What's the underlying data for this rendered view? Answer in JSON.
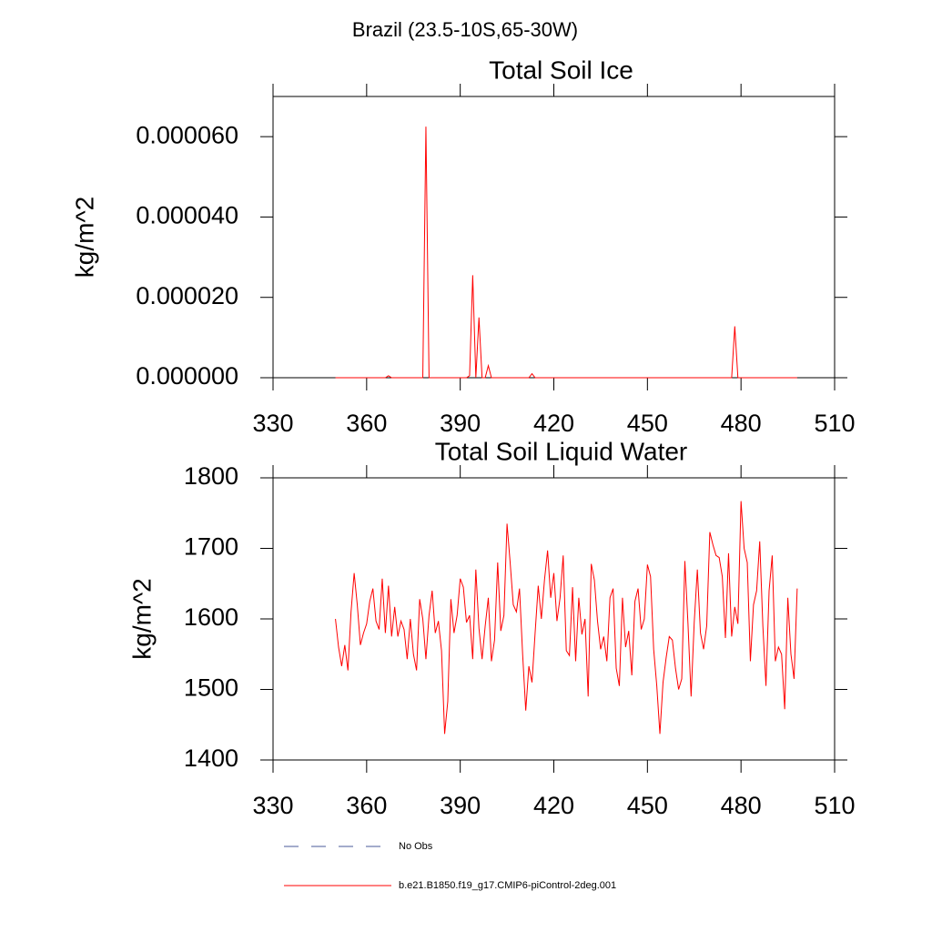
{
  "title": "Brazil (23.5-10S,65-30W)",
  "legend": [
    {
      "name": "No Obs",
      "color": "#4a5a9a",
      "dash": true
    },
    {
      "name": "b.e21.B1850.f19_g17.CMIP6-piControl-2deg.001",
      "color": "#ff0000",
      "dash": false
    }
  ],
  "chart_data": [
    {
      "type": "line",
      "title": "Total Soil Ice",
      "y_label": "kg/m^2",
      "xlim": [
        330,
        510
      ],
      "xticks": [
        330,
        360,
        390,
        420,
        450,
        480,
        510
      ],
      "ylim": [
        0,
        7e-05
      ],
      "yticks": [
        {
          "value": 0,
          "label": "0.000000"
        },
        {
          "value": 2e-05,
          "label": "0.000020"
        },
        {
          "value": 4e-05,
          "label": "0.000040"
        },
        {
          "value": 6e-05,
          "label": "0.000060"
        }
      ],
      "x": [
        350,
        351,
        352,
        353,
        354,
        355,
        356,
        357,
        358,
        359,
        360,
        361,
        362,
        363,
        364,
        365,
        366,
        367,
        368,
        369,
        370,
        371,
        372,
        373,
        374,
        375,
        376,
        377,
        378,
        379,
        380,
        381,
        382,
        383,
        384,
        385,
        386,
        387,
        388,
        389,
        390,
        391,
        392,
        393,
        394,
        395,
        396,
        397,
        398,
        399,
        400,
        401,
        402,
        403,
        404,
        405,
        406,
        407,
        408,
        409,
        410,
        411,
        412,
        413,
        414,
        415,
        416,
        417,
        418,
        419,
        420,
        421,
        422,
        423,
        424,
        425,
        426,
        427,
        428,
        429,
        430,
        431,
        432,
        433,
        434,
        435,
        436,
        437,
        438,
        439,
        440,
        441,
        442,
        443,
        444,
        445,
        446,
        447,
        448,
        449,
        450,
        451,
        452,
        453,
        454,
        455,
        456,
        457,
        458,
        459,
        460,
        461,
        462,
        463,
        464,
        465,
        466,
        467,
        468,
        469,
        470,
        471,
        472,
        473,
        474,
        475,
        476,
        477,
        478,
        479,
        480,
        481,
        482,
        483,
        484,
        485,
        486,
        487,
        488,
        489,
        490,
        491,
        492,
        493,
        494,
        495,
        496,
        497,
        498
      ],
      "series": [
        {
          "name": "b.e21.B1850.f19_g17.CMIP6-piControl-2deg.001",
          "color": "#ff0000",
          "values": [
            0,
            0,
            0,
            0,
            0,
            0,
            0,
            0,
            0,
            0,
            0,
            0,
            0,
            0,
            0,
            0,
            0,
            5e-07,
            0,
            0,
            0,
            0,
            0,
            0,
            0,
            0,
            0,
            0,
            0,
            6.25e-05,
            0,
            0,
            0,
            0,
            0,
            0,
            0,
            0,
            0,
            0,
            0,
            0,
            0,
            5e-07,
            2.55e-05,
            0,
            1.5e-05,
            0,
            0,
            3e-06,
            0,
            0,
            0,
            0,
            0,
            0,
            0,
            0,
            0,
            0,
            0,
            0,
            0,
            1e-06,
            0,
            0,
            0,
            0,
            0,
            0,
            0,
            0,
            0,
            0,
            0,
            0,
            0,
            0,
            0,
            0,
            0,
            0,
            0,
            0,
            0,
            0,
            0,
            0,
            0,
            0,
            0,
            0,
            0,
            0,
            0,
            0,
            0,
            0,
            0,
            0,
            0,
            0,
            0,
            0,
            0,
            0,
            0,
            0,
            0,
            0,
            0,
            0,
            0,
            0,
            0,
            0,
            0,
            0,
            0,
            0,
            0,
            0,
            0,
            0,
            0,
            0,
            0,
            0,
            1.28e-05,
            0,
            0,
            0,
            0,
            0,
            0,
            0,
            0,
            0,
            0,
            0,
            0,
            0,
            0,
            0,
            0,
            0,
            0,
            0,
            0
          ]
        }
      ]
    },
    {
      "type": "line",
      "title": "Total Soil Liquid Water",
      "y_label": "kg/m^2",
      "xlim": [
        330,
        510
      ],
      "xticks": [
        330,
        360,
        390,
        420,
        450,
        480,
        510
      ],
      "ylim": [
        1400,
        1800
      ],
      "yticks": [
        1400,
        1500,
        1600,
        1700,
        1800
      ],
      "x": [
        350,
        351,
        352,
        353,
        354,
        355,
        356,
        357,
        358,
        359,
        360,
        361,
        362,
        363,
        364,
        365,
        366,
        367,
        368,
        369,
        370,
        371,
        372,
        373,
        374,
        375,
        376,
        377,
        378,
        379,
        380,
        381,
        382,
        383,
        384,
        385,
        386,
        387,
        388,
        389,
        390,
        391,
        392,
        393,
        394,
        395,
        396,
        397,
        398,
        399,
        400,
        401,
        402,
        403,
        404,
        405,
        406,
        407,
        408,
        409,
        410,
        411,
        412,
        413,
        414,
        415,
        416,
        417,
        418,
        419,
        420,
        421,
        422,
        423,
        424,
        425,
        426,
        427,
        428,
        429,
        430,
        431,
        432,
        433,
        434,
        435,
        436,
        437,
        438,
        439,
        440,
        441,
        442,
        443,
        444,
        445,
        446,
        447,
        448,
        449,
        450,
        451,
        452,
        453,
        454,
        455,
        456,
        457,
        458,
        459,
        460,
        461,
        462,
        463,
        464,
        465,
        466,
        467,
        468,
        469,
        470,
        471,
        472,
        473,
        474,
        475,
        476,
        477,
        478,
        479,
        480,
        481,
        482,
        483,
        484,
        485,
        486,
        487,
        488,
        489,
        490,
        491,
        492,
        493,
        494,
        495,
        496,
        497,
        498
      ],
      "series": [
        {
          "name": "b.e21.B1850.f19_g17.CMIP6-piControl-2deg.001",
          "color": "#ff0000",
          "values": [
            1600,
            1560,
            1533,
            1563,
            1527,
            1610,
            1665,
            1620,
            1563,
            1580,
            1593,
            1625,
            1643,
            1597,
            1585,
            1657,
            1580,
            1647,
            1575,
            1617,
            1575,
            1597,
            1585,
            1543,
            1600,
            1550,
            1527,
            1628,
            1600,
            1543,
            1605,
            1640,
            1580,
            1597,
            1555,
            1437,
            1483,
            1628,
            1580,
            1605,
            1657,
            1645,
            1595,
            1605,
            1543,
            1670,
            1587,
            1543,
            1590,
            1630,
            1540,
            1570,
            1680,
            1583,
            1605,
            1735,
            1680,
            1620,
            1610,
            1643,
            1550,
            1470,
            1533,
            1510,
            1580,
            1647,
            1600,
            1655,
            1697,
            1630,
            1665,
            1597,
            1630,
            1690,
            1555,
            1548,
            1645,
            1540,
            1630,
            1578,
            1600,
            1490,
            1678,
            1655,
            1597,
            1557,
            1575,
            1540,
            1630,
            1643,
            1530,
            1505,
            1630,
            1560,
            1583,
            1520,
            1625,
            1643,
            1585,
            1600,
            1677,
            1660,
            1557,
            1505,
            1437,
            1510,
            1545,
            1575,
            1570,
            1530,
            1500,
            1515,
            1682,
            1593,
            1490,
            1595,
            1670,
            1580,
            1557,
            1590,
            1723,
            1705,
            1690,
            1687,
            1660,
            1573,
            1693,
            1575,
            1617,
            1593,
            1767,
            1700,
            1680,
            1540,
            1620,
            1640,
            1710,
            1590,
            1505,
            1640,
            1690,
            1540,
            1560,
            1550,
            1472,
            1630,
            1550,
            1515,
            1643
          ]
        }
      ]
    }
  ]
}
